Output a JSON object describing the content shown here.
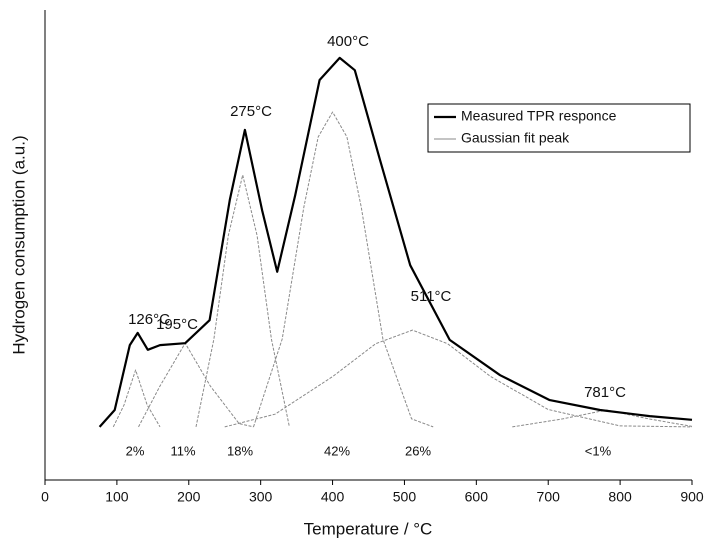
{
  "chart_data": {
    "type": "line",
    "x_label": "Temperature / °C",
    "y_label": "Hydrogen consumption (a.u.)",
    "xlim": [
      0,
      900
    ],
    "xticks": [
      0,
      100,
      200,
      300,
      400,
      500,
      600,
      700,
      800,
      900
    ],
    "ylim": [
      0,
      100
    ],
    "series": [
      {
        "name": "Measured TPR responce",
        "color": "#000000",
        "x": [
          76,
          97,
          118,
          129,
          143,
          160,
          195,
          229,
          257,
          278,
          302,
          323,
          348,
          382,
          410,
          431,
          466,
          508,
          563,
          633,
          702,
          772,
          841,
          900
        ],
        "values": [
          11.3,
          14.9,
          28.7,
          31.3,
          27.7,
          28.7,
          29.1,
          34,
          59.6,
          74.5,
          57.4,
          44.3,
          60.6,
          85.1,
          89.8,
          87.2,
          68.1,
          45.7,
          29.8,
          22.3,
          17,
          14.9,
          13.6,
          12.8
        ]
      },
      {
        "name": "Gaussian fit peak",
        "color": "#8a8a8a",
        "peaks": [
          {
            "x": [
              95,
              110,
              126,
              142,
              160
            ],
            "values": [
              11.3,
              16,
              23.4,
              16,
              11.3
            ]
          },
          {
            "x": [
              130,
              160,
              195,
              230,
              270,
              290
            ],
            "values": [
              11.3,
              20,
              29.1,
              20,
              12,
              11.3
            ]
          },
          {
            "x": [
              210,
              235,
              255,
              275,
              295,
              315,
              340
            ],
            "values": [
              11.3,
              30,
              52,
              64.9,
              52,
              30,
              11.3
            ]
          },
          {
            "x": [
              290,
              330,
              360,
              380,
              400,
              420,
              440,
              470,
              510,
              540
            ],
            "values": [
              11.3,
              30,
              58,
              73,
              78.3,
              73,
              58,
              30,
              13,
              11.3
            ]
          },
          {
            "x": [
              250,
              320,
              400,
              460,
              511,
              560,
              620,
              700,
              800,
              900
            ],
            "values": [
              11.3,
              14,
              22,
              29,
              31.9,
              29,
              22,
              15,
              11.5,
              11.3
            ]
          },
          {
            "x": [
              650,
              720,
              781,
              840,
              900
            ],
            "values": [
              11.3,
              13,
              14.9,
              13,
              11.4
            ]
          }
        ]
      }
    ],
    "peak_labels": [
      "126°C",
      "195°C",
      "275°C",
      "400°C",
      "511°C",
      "781°C"
    ],
    "percent_labels": [
      "2%",
      "11%",
      "18%",
      "42%",
      "26%",
      "<1%"
    ]
  }
}
